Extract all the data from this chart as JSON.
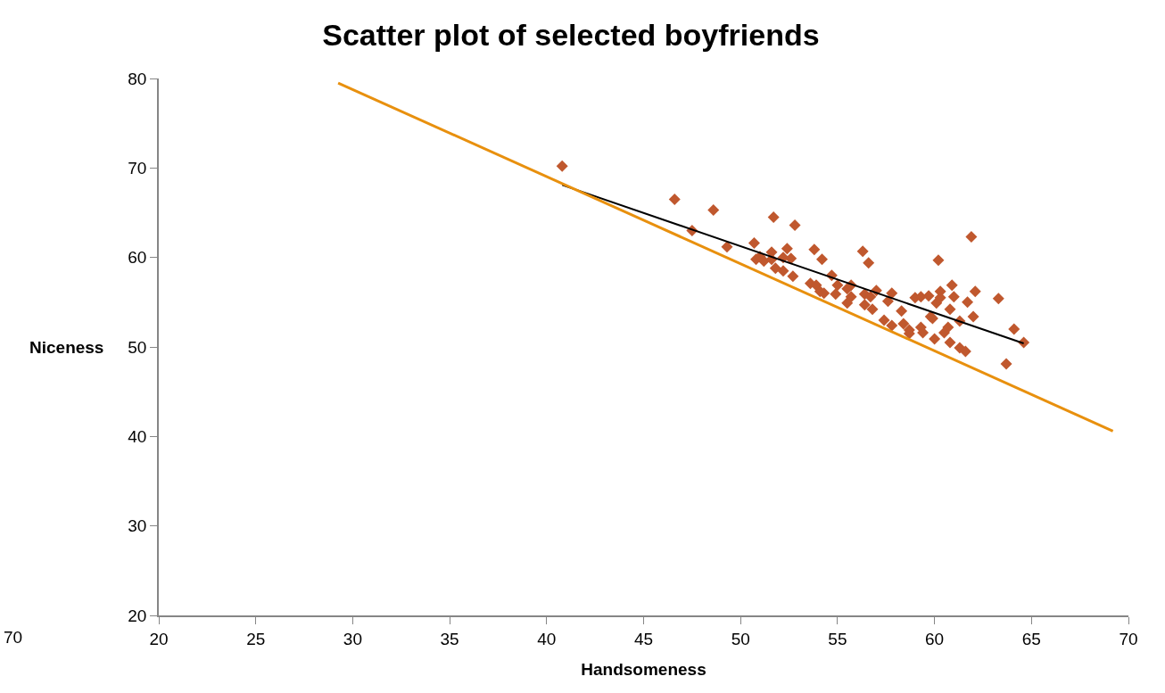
{
  "chart_data": {
    "type": "scatter",
    "title": "Scatter plot of selected boyfriends",
    "xlabel": "Handsomeness",
    "ylabel": "Niceness",
    "annotations": [
      "70"
    ],
    "xlim": [
      20,
      70
    ],
    "xticks": [
      20,
      25,
      30,
      35,
      40,
      45,
      50,
      55,
      60,
      65,
      70
    ],
    "ylim": [
      20,
      80
    ],
    "yticks": [
      20,
      30,
      40,
      50,
      60,
      70,
      80
    ],
    "grid": false,
    "series": [
      {
        "marker": "diamond",
        "color": "#c0582e",
        "x": [
          40.8,
          46.6,
          48.6,
          47.5,
          49.3,
          50.7,
          51.7,
          52.8,
          52.4,
          51.6,
          50.8,
          51.2,
          52.2,
          52.6,
          51.8,
          52.2,
          52.7,
          51.0,
          51.6,
          53.8,
          54.2,
          56.3,
          56.6,
          60.2,
          61.9,
          54.7,
          53.6,
          53.9,
          54.1,
          54.3,
          54.9,
          55.0,
          55.5,
          55.7,
          55.7,
          55.5,
          56.4,
          56.7,
          56.4,
          56.8,
          57.0,
          57.6,
          57.8,
          58.3,
          57.4,
          57.8,
          58.4,
          58.7,
          58.7,
          59.0,
          59.3,
          59.7,
          60.3,
          60.1,
          60.3,
          60.9,
          61.0,
          60.8,
          59.8,
          59.9,
          59.3,
          59.4,
          60.7,
          60.5,
          61.3,
          62.0,
          61.7,
          62.1,
          63.3,
          60.0,
          60.8,
          61.3,
          61.6,
          64.1,
          64.6,
          63.7
        ],
        "values": [
          70.2,
          66.5,
          65.3,
          63.0,
          61.2,
          61.6,
          64.5,
          63.6,
          61.0,
          60.6,
          59.8,
          59.6,
          60.0,
          59.9,
          58.8,
          58.5,
          57.9,
          60.1,
          59.8,
          60.9,
          59.8,
          60.7,
          59.4,
          59.7,
          62.3,
          58.0,
          57.1,
          56.9,
          56.2,
          56.0,
          55.9,
          56.9,
          56.5,
          56.9,
          55.6,
          54.9,
          55.9,
          55.6,
          54.7,
          54.2,
          56.3,
          55.1,
          56.0,
          54.0,
          53.0,
          52.4,
          52.6,
          51.9,
          51.5,
          55.5,
          55.6,
          55.7,
          56.2,
          54.9,
          55.5,
          56.9,
          55.6,
          54.2,
          53.4,
          53.2,
          52.2,
          51.6,
          52.2,
          51.6,
          52.9,
          53.4,
          55.0,
          56.2,
          55.4,
          50.9,
          50.5,
          49.9,
          49.5,
          52.0,
          50.5,
          48.1
        ]
      },
      {
        "type": "line",
        "color": "#000000",
        "line_style": "solid",
        "marker": "none",
        "x": [
          40.8,
          64.6
        ],
        "values": [
          68.1,
          50.4
        ]
      },
      {
        "type": "line",
        "color": "#e8900e",
        "line_style": "solid",
        "marker": "none",
        "x": [
          29.25,
          69.2
        ],
        "values": [
          79.5,
          40.6
        ]
      }
    ]
  }
}
